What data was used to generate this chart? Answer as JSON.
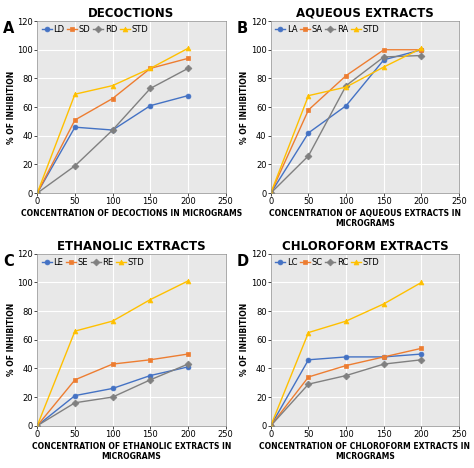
{
  "panels": [
    {
      "title": "DECOCTIONS",
      "label": "A",
      "xlabel": "CONCENTRATION OF DECOCTIONS IN MICROGRAMS",
      "legend_labels": [
        "LD",
        "SD",
        "RD",
        "STD"
      ],
      "x": [
        0,
        50,
        100,
        150,
        200
      ],
      "series": [
        [
          0,
          46,
          44,
          61,
          68
        ],
        [
          0,
          51,
          66,
          87,
          94
        ],
        [
          0,
          19,
          44,
          73,
          87
        ],
        [
          0,
          69,
          75,
          87,
          101
        ]
      ],
      "colors": [
        "#4472c4",
        "#ed7d31",
        "#808080",
        "#ffc000"
      ],
      "markers": [
        "o",
        "s",
        "D",
        "^"
      ],
      "ylim": [
        0,
        120
      ],
      "yticks": [
        0,
        20,
        40,
        60,
        80,
        100,
        120
      ],
      "xlim": [
        0,
        250
      ],
      "xticks": [
        0,
        50,
        100,
        150,
        200,
        250
      ]
    },
    {
      "title": "AQUEOUS EXTRACTS",
      "label": "B",
      "xlabel": "CONCENTRATION OF AQUEOUS EXTRACTS IN\nMICROGRAMS",
      "legend_labels": [
        "LA",
        "SA",
        "RA",
        "STD"
      ],
      "x": [
        0,
        50,
        100,
        150,
        200
      ],
      "series": [
        [
          0,
          42,
          61,
          93,
          100
        ],
        [
          0,
          58,
          82,
          100,
          100
        ],
        [
          0,
          26,
          75,
          95,
          96
        ],
        [
          0,
          68,
          74,
          88,
          101
        ]
      ],
      "colors": [
        "#4472c4",
        "#ed7d31",
        "#808080",
        "#ffc000"
      ],
      "markers": [
        "o",
        "s",
        "D",
        "^"
      ],
      "ylim": [
        0,
        120
      ],
      "yticks": [
        0,
        20,
        40,
        60,
        80,
        100,
        120
      ],
      "xlim": [
        0,
        250
      ],
      "xticks": [
        0,
        50,
        100,
        150,
        200,
        250
      ]
    },
    {
      "title": "ETHANOLIC EXTRACTS",
      "label": "C",
      "xlabel": "CONCENTRATION OF ETHANOLIC EXTRACTS IN\nMICROGRAMS",
      "legend_labels": [
        "LE",
        "SE",
        "RE",
        "STD"
      ],
      "x": [
        0,
        50,
        100,
        150,
        200
      ],
      "series": [
        [
          0,
          21,
          26,
          35,
          41
        ],
        [
          0,
          32,
          43,
          46,
          50
        ],
        [
          0,
          16,
          20,
          32,
          43
        ],
        [
          0,
          66,
          73,
          88,
          101
        ]
      ],
      "colors": [
        "#4472c4",
        "#ed7d31",
        "#808080",
        "#ffc000"
      ],
      "markers": [
        "o",
        "s",
        "D",
        "^"
      ],
      "ylim": [
        0,
        120
      ],
      "yticks": [
        0,
        20,
        40,
        60,
        80,
        100,
        120
      ],
      "xlim": [
        0,
        250
      ],
      "xticks": [
        0,
        50,
        100,
        150,
        200,
        250
      ]
    },
    {
      "title": "CHLOROFORM EXTRACTS",
      "label": "D",
      "xlabel": "CONCENTRATION OF CHLOROFORM EXTRACTS IN\nMICROGRAMS",
      "legend_labels": [
        "LC",
        "SC",
        "RC",
        "STD"
      ],
      "x": [
        0,
        50,
        100,
        150,
        200
      ],
      "series": [
        [
          0,
          46,
          48,
          48,
          50
        ],
        [
          0,
          34,
          42,
          48,
          54
        ],
        [
          0,
          29,
          35,
          43,
          46
        ],
        [
          0,
          65,
          73,
          85,
          100
        ]
      ],
      "colors": [
        "#4472c4",
        "#ed7d31",
        "#808080",
        "#ffc000"
      ],
      "markers": [
        "o",
        "s",
        "D",
        "^"
      ],
      "ylim": [
        0,
        120
      ],
      "yticks": [
        0,
        20,
        40,
        60,
        80,
        100,
        120
      ],
      "xlim": [
        0,
        250
      ],
      "xticks": [
        0,
        50,
        100,
        150,
        200,
        250
      ]
    }
  ],
  "ylabel": "% OF INHIBITION",
  "bg_color": "#e8e8e8",
  "grid_color": "#ffffff",
  "title_fontsize": 8.5,
  "label_fontsize": 5.5,
  "tick_fontsize": 6,
  "legend_fontsize": 6,
  "linewidth": 1.0,
  "markersize": 3.5
}
